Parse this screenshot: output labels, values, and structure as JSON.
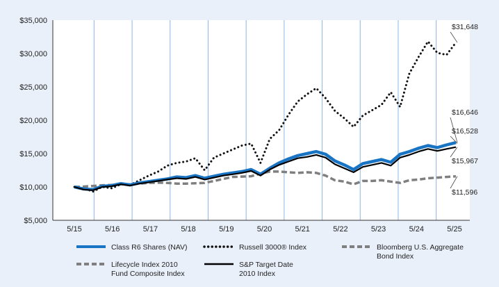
{
  "chart_data": {
    "type": "line",
    "x_ticks": [
      "5/15",
      "5/16",
      "5/17",
      "5/18",
      "5/19",
      "5/20",
      "5/21",
      "5/22",
      "5/23",
      "5/24",
      "5/25"
    ],
    "y_ticks": [
      "$5,000",
      "$10,000",
      "$15,000",
      "$20,000",
      "$25,000",
      "$30,000",
      "$35,000"
    ],
    "ylim": [
      5000,
      35000
    ],
    "grid": "vertical",
    "series": [
      {
        "name": "Class R6 Shares (NAV)",
        "color": "#1a74c4",
        "style": "solid-thick",
        "end_label": "$16,646",
        "values": [
          10000,
          9700,
          9600,
          10100,
          10200,
          10500,
          10300,
          10600,
          10800,
          11000,
          11200,
          11500,
          11400,
          11700,
          11300,
          11600,
          11900,
          12100,
          12300,
          12600,
          11900,
          12800,
          13600,
          14200,
          14700,
          15000,
          15300,
          14900,
          13900,
          13300,
          12600,
          13500,
          13800,
          14100,
          13700,
          14900,
          15300,
          15800,
          16200,
          15900,
          16300,
          16646
        ]
      },
      {
        "name": "Russell 3000® Index",
        "color": "#111111",
        "style": "dotted",
        "end_label": "$31,648",
        "values": [
          10000,
          9800,
          9300,
          10000,
          9800,
          10400,
          10300,
          11000,
          11700,
          12300,
          13200,
          13600,
          13800,
          14300,
          12500,
          14400,
          15000,
          15600,
          16200,
          16500,
          13600,
          17200,
          18500,
          20800,
          22800,
          23900,
          24800,
          23300,
          21400,
          20300,
          19000,
          20700,
          21500,
          22300,
          24200,
          22000,
          27000,
          29500,
          31800,
          30100,
          29800,
          31648
        ]
      },
      {
        "name": "Bloomberg U.S. Aggregate\nBond Index",
        "color": "#7f7f7f",
        "style": "dashed",
        "end_label": "$11,596",
        "values": [
          10000,
          10050,
          10150,
          10250,
          10300,
          10400,
          10400,
          10500,
          10600,
          10650,
          10600,
          10500,
          10500,
          10550,
          10600,
          10900,
          11200,
          11500,
          11550,
          11600,
          12000,
          12300,
          12300,
          12200,
          12100,
          12200,
          12100,
          11700,
          11000,
          10800,
          10400,
          10900,
          10900,
          11000,
          10800,
          10600,
          11000,
          11100,
          11300,
          11400,
          11500,
          11596
        ]
      },
      {
        "name": "Lifecycle Index 2010\nFund Composite Index",
        "color": "#7f7f7f",
        "style": "dashed-legend-only",
        "end_label": "",
        "values": []
      },
      {
        "name": "S&P Target Date\n2010 Index",
        "color": "#000000",
        "style": "solid",
        "end_label": "$15,967",
        "values": [
          10000,
          9600,
          9500,
          10000,
          10100,
          10400,
          10200,
          10500,
          10700,
          10900,
          11100,
          11300,
          11200,
          11500,
          11100,
          11400,
          11700,
          11900,
          12100,
          12400,
          11700,
          12600,
          13300,
          13800,
          14300,
          14500,
          14800,
          14400,
          13400,
          12800,
          12200,
          13000,
          13300,
          13600,
          13200,
          14400,
          14800,
          15300,
          15700,
          15400,
          15700,
          15967
        ]
      }
    ],
    "extra_labels": [
      "$16,528"
    ]
  }
}
